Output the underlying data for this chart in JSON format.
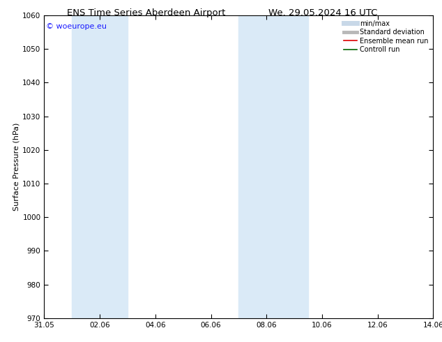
{
  "title_left": "ENS Time Series Aberdeen Airport",
  "title_right": "We. 29.05.2024 16 UTC",
  "ylabel": "Surface Pressure (hPa)",
  "ylim": [
    970,
    1060
  ],
  "yticks": [
    970,
    980,
    990,
    1000,
    1010,
    1020,
    1030,
    1040,
    1050,
    1060
  ],
  "xlim_start": 0,
  "xlim_end": 14,
  "xtick_labels": [
    "31.05",
    "02.06",
    "04.06",
    "06.06",
    "08.06",
    "10.06",
    "12.06",
    "14.06"
  ],
  "xtick_positions": [
    0,
    2,
    4,
    6,
    8,
    10,
    12,
    14
  ],
  "shade_bands": [
    {
      "x_start": 1.0,
      "x_end": 3.0
    },
    {
      "x_start": 7.0,
      "x_end": 9.5
    }
  ],
  "shade_color": "#daeaf7",
  "copyright_text": "© woeurope.eu",
  "copyright_color": "#1a1aff",
  "legend_entries": [
    {
      "label": "min/max",
      "color": "#c8d8e8",
      "lw": 5,
      "ls": "-"
    },
    {
      "label": "Standard deviation",
      "color": "#b8b8b8",
      "lw": 3.5,
      "ls": "-"
    },
    {
      "label": "Ensemble mean run",
      "color": "#dd0000",
      "lw": 1.2,
      "ls": "-"
    },
    {
      "label": "Controll run",
      "color": "#006600",
      "lw": 1.2,
      "ls": "-"
    }
  ],
  "bg_color": "#ffffff",
  "title_fontsize": 9.5,
  "axis_label_fontsize": 8,
  "tick_fontsize": 7.5,
  "legend_fontsize": 7,
  "copyright_fontsize": 8
}
